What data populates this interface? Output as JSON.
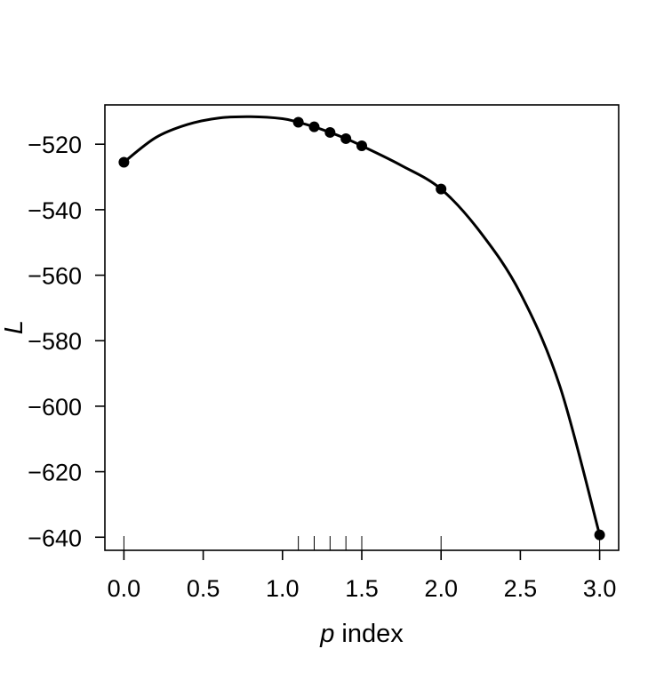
{
  "chart_data": {
    "type": "line",
    "xlabel_italic": "p",
    "xlabel_rest": " index",
    "ylabel": "L",
    "xlim": [
      -0.12,
      3.12
    ],
    "ylim": [
      -644,
      -508
    ],
    "x_ticks": [
      "0.0",
      "0.5",
      "1.0",
      "1.5",
      "2.0",
      "2.5",
      "3.0"
    ],
    "y_ticks": [
      "−520",
      "−540",
      "−560",
      "−580",
      "−600",
      "−620",
      "−640"
    ],
    "points": {
      "x": [
        0.0,
        1.1,
        1.2,
        1.3,
        1.4,
        1.5,
        2.0,
        3.0
      ],
      "y": [
        -525.5,
        -513.3,
        -514.7,
        -516.4,
        -518.3,
        -520.5,
        -533.7,
        -639.3
      ]
    },
    "curve": {
      "x": [
        0.0,
        0.2,
        0.4,
        0.6,
        0.8,
        1.0,
        1.1,
        1.2,
        1.3,
        1.4,
        1.5,
        1.75,
        2.0,
        2.25,
        2.5,
        2.75,
        3.0
      ],
      "y": [
        -525.5,
        -518.0,
        -514.0,
        -512.0,
        -511.6,
        -512.2,
        -513.3,
        -514.7,
        -516.4,
        -518.3,
        -520.5,
        -526.5,
        -533.7,
        -547.0,
        -565.5,
        -594.0,
        -639.3
      ]
    },
    "rug": [
      0.0,
      1.1,
      1.2,
      1.3,
      1.4,
      1.5,
      2.0,
      3.0
    ]
  }
}
